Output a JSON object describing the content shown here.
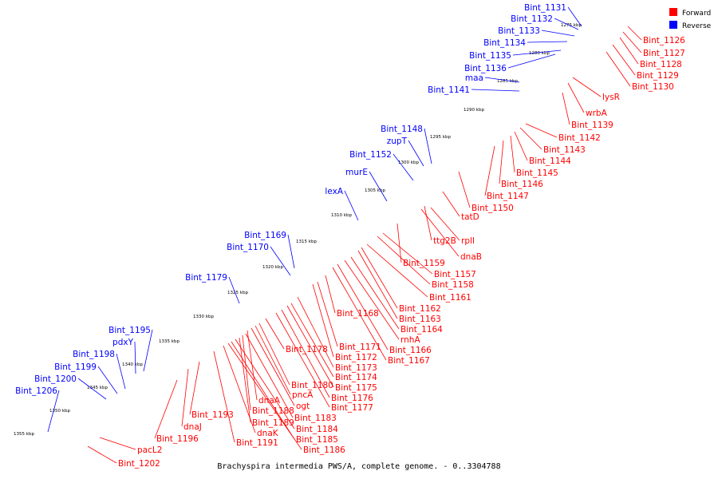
{
  "caption": "Brachyspira intermedia PWS/A, complete genome. - 0..3304788",
  "legend": [
    {
      "label": "Forward",
      "color": "#ff0000"
    },
    {
      "label": "Reverse",
      "color": "#0000ff"
    }
  ],
  "colors": {
    "forward": "#ff0000",
    "reverse": "#0000ff",
    "backbone": "#888888"
  },
  "ticks": [
    "1275 kbp",
    "1280 kbp",
    "1285 kbp",
    "1290 kbp",
    "1295 kbp",
    "1300 kbp",
    "1305 kbp",
    "1310 kbp",
    "1315 kbp",
    "1320 kbp",
    "1325 kbp",
    "1330 kbp",
    "1335 kbp",
    "1340 kbp",
    "1345 kbp",
    "1350 kbp",
    "1355 kbp"
  ],
  "forward_labels": [
    "Bint_1126",
    "Bint_1127",
    "Bint_1128",
    "Bint_1129",
    "Bint_1130",
    "lysR",
    "wrbA",
    "Bint_1139",
    "Bint_1142",
    "Bint_1143",
    "Bint_1144",
    "Bint_1145",
    "Bint_1146",
    "Bint_1147",
    "Bint_1150",
    "tatD",
    "ttg2B",
    "rplI",
    "dnaB",
    "Bint_1159",
    "Bint_1157",
    "Bint_1158",
    "Bint_1161",
    "Bint_1162",
    "Bint_1163",
    "Bint_1164",
    "rnhA",
    "Bint_1166",
    "Bint_1167",
    "Bint_1168",
    "Bint_1171",
    "Bint_1172",
    "Bint_1173",
    "Bint_1174",
    "Bint_1175",
    "Bint_1176",
    "Bint_1177",
    "Bint_1178",
    "Bint_1180",
    "pncA",
    "ogt",
    "dnaA",
    "Bint_1183",
    "Bint_1188",
    "Bint_1189",
    "Bint_1184",
    "Bint_1185",
    "Bint_1186",
    "dnaK",
    "Bint_1191",
    "Bint_1193",
    "dnaJ",
    "Bint_1196",
    "pacL2",
    "Bint_1202"
  ],
  "reverse_labels": [
    "Bint_1131",
    "Bint_1132",
    "Bint_1133",
    "Bint_1134",
    "Bint_1135",
    "Bint_1136",
    "maa",
    "Bint_1141",
    "Bint_1148",
    "zupT",
    "Bint_1152",
    "murE",
    "lexA",
    "Bint_1169",
    "Bint_1170",
    "Bint_1179",
    "Bint_1195",
    "pdxY",
    "Bint_1198",
    "Bint_1199",
    "Bint_1200",
    "Bint_1206"
  ]
}
